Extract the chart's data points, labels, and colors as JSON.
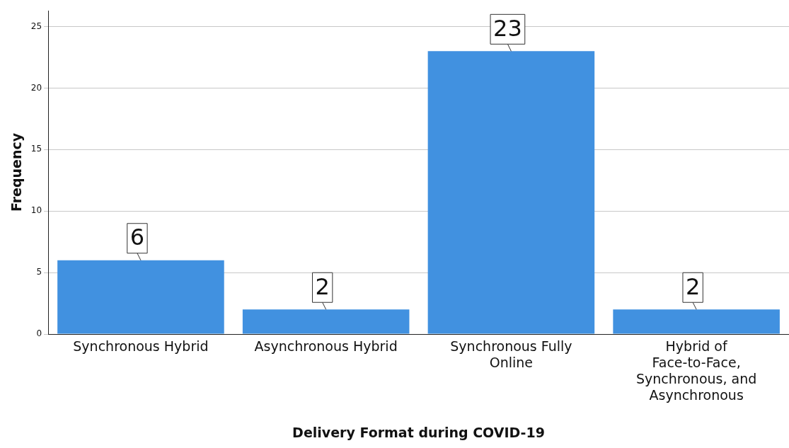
{
  "chart_data": {
    "type": "bar",
    "xlabel": "Delivery Format during COVID-19",
    "ylabel": "Frequency",
    "categories": [
      "Synchronous Hybrid",
      "Asynchronous Hybrid",
      "Synchronous Fully Online",
      "Hybrid of Face-to-Face, Synchronous, and Asynchronous"
    ],
    "values": [
      6,
      2,
      23,
      2
    ],
    "color": "#4191e0",
    "ylim": [
      0,
      26.3
    ],
    "yticks": [
      0,
      5,
      10,
      15,
      20,
      25
    ],
    "grid": "y",
    "data_labels": true,
    "legend": false
  }
}
